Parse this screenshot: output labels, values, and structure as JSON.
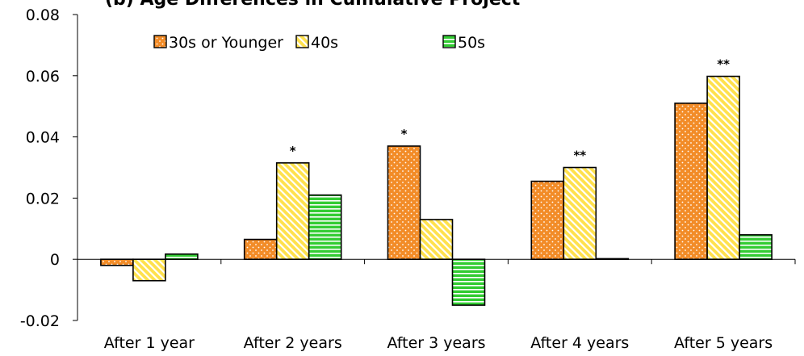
{
  "chart_data": {
    "type": "bar",
    "title": "(b) Age Differences in Cumulative Project",
    "categories": [
      "After 1 year",
      "After 2 years",
      "After 3 years",
      "After 4 years",
      "After 5 years"
    ],
    "series": [
      {
        "name": "30s or Younger",
        "values": [
          -0.002,
          0.0065,
          0.037,
          0.0255,
          0.051
        ],
        "color": "#f28c28",
        "pattern": "dots"
      },
      {
        "name": "40s",
        "values": [
          -0.007,
          0.0315,
          0.013,
          0.03,
          0.0598
        ],
        "color": "#ffe14d",
        "pattern": "diagonal"
      },
      {
        "name": "50s",
        "values": [
          0.0017,
          0.021,
          -0.015,
          0.0002,
          0.008
        ],
        "color": "#33cc33",
        "pattern": "horizontal"
      }
    ],
    "significance": [
      "",
      "*",
      "*",
      "**",
      "**"
    ],
    "ylim": [
      -0.02,
      0.08
    ],
    "yticks": [
      -0.02,
      0,
      0.02,
      0.04,
      0.06,
      0.08
    ],
    "ytick_labels": [
      "-0.02",
      "0",
      "0.02",
      "0.04",
      "0.06",
      "0.08"
    ],
    "xlabel": "",
    "ylabel": "",
    "legend_position": "top-left",
    "grid": false
  }
}
